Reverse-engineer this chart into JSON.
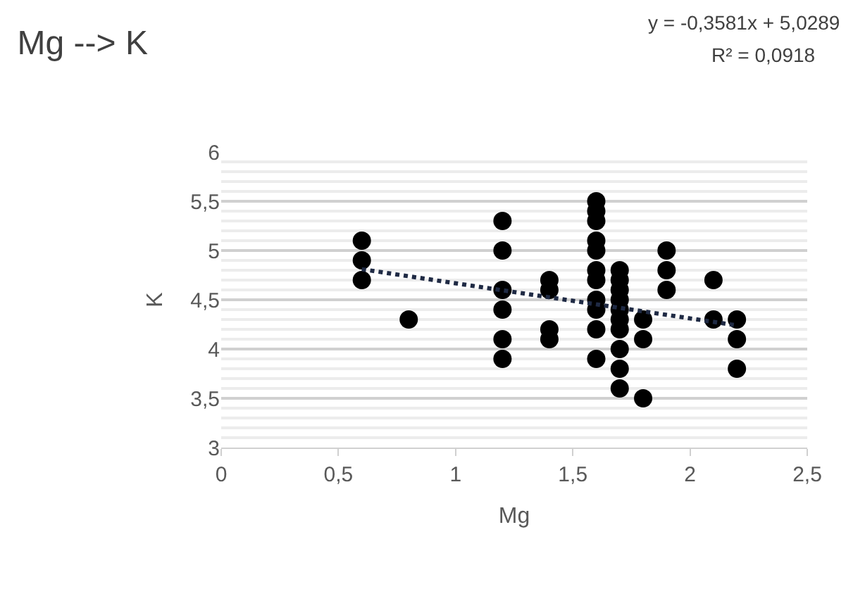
{
  "chart_data": {
    "type": "scatter",
    "title": "Mg --> K",
    "xlabel": "Mg",
    "ylabel": "K",
    "annotations": [
      "y = -0,3581x + 5,0289",
      "R² = 0,0918"
    ],
    "series": [
      {
        "color": "#000000",
        "marker": "circle",
        "x": [
          0.6,
          0.6,
          0.6,
          0.8,
          1.2,
          1.2,
          1.2,
          1.2,
          1.2,
          1.2,
          1.4,
          1.4,
          1.4,
          1.4,
          1.6,
          1.6,
          1.6,
          1.6,
          1.6,
          1.6,
          1.6,
          1.6,
          1.6,
          1.6,
          1.6,
          1.7,
          1.7,
          1.7,
          1.7,
          1.7,
          1.7,
          1.7,
          1.7,
          1.7,
          1.7,
          1.8,
          1.8,
          1.8,
          1.9,
          1.9,
          1.9,
          2.1,
          2.1,
          2.2,
          2.2,
          2.2
        ],
        "values": [
          5.1,
          4.9,
          4.7,
          4.3,
          5.3,
          5.0,
          4.6,
          4.4,
          4.1,
          3.9,
          4.7,
          4.6,
          4.2,
          4.1,
          5.5,
          5.4,
          5.3,
          5.1,
          5.0,
          4.8,
          4.7,
          4.5,
          4.4,
          4.2,
          3.9,
          4.8,
          4.7,
          4.6,
          4.5,
          4.4,
          4.3,
          4.2,
          4.0,
          3.8,
          3.6,
          4.3,
          4.1,
          3.5,
          5.0,
          4.8,
          4.6,
          4.7,
          4.3,
          4.3,
          4.1,
          3.8
        ]
      },
      {
        "type": "line",
        "color": "#1f2a44",
        "line_style": "dotted",
        "x": [
          0.6,
          2.2
        ],
        "values": [
          4.81,
          4.24
        ]
      }
    ],
    "xlim": [
      0,
      2.5
    ],
    "xticks": [
      0,
      {
        "value": 0.5,
        "label": "0,5"
      },
      1,
      {
        "value": 1.5,
        "label": "1,5"
      },
      2,
      {
        "value": 2.5,
        "label": "2,5"
      }
    ],
    "ylim": [
      3,
      6
    ],
    "yticks": [
      3,
      {
        "value": 3.5,
        "label": "3,5"
      },
      4,
      {
        "value": 4.5,
        "label": "4,5"
      },
      5,
      {
        "value": 5.5,
        "label": "5,5"
      },
      6
    ],
    "grid": "y"
  }
}
